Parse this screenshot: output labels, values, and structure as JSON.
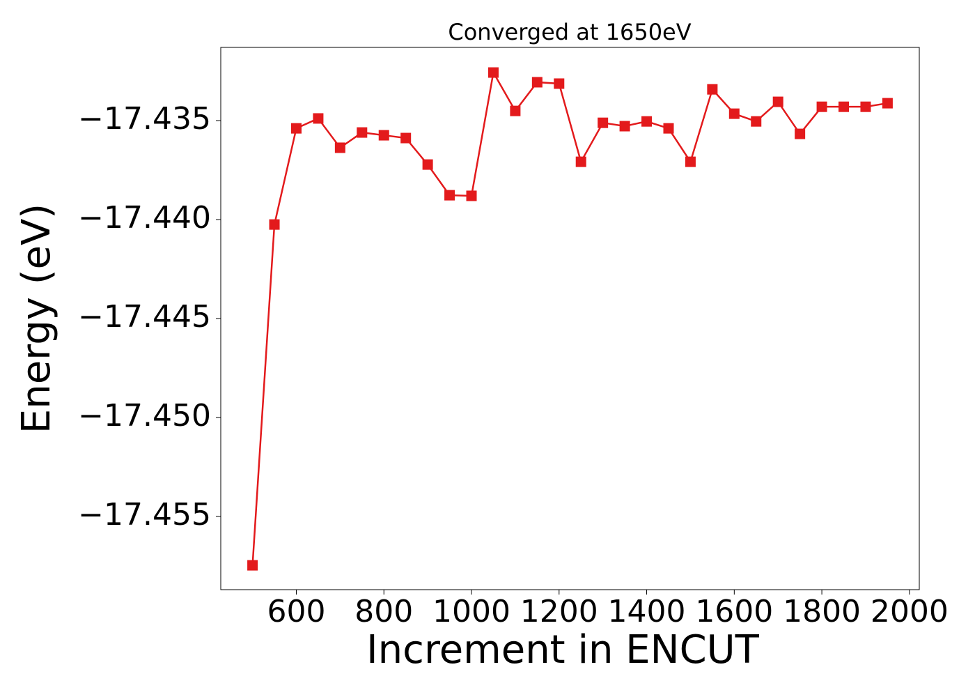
{
  "chart_data": {
    "type": "line",
    "title": "Converged at 1650eV",
    "xlabel": "Increment in ENCUT",
    "ylabel": "Energy (eV)",
    "x": [
      500,
      550,
      600,
      650,
      700,
      750,
      800,
      850,
      900,
      950,
      1000,
      1050,
      1100,
      1150,
      1200,
      1250,
      1300,
      1350,
      1400,
      1450,
      1500,
      1550,
      1600,
      1650,
      1700,
      1750,
      1800,
      1850,
      1900,
      1950
    ],
    "series": [
      {
        "color": "#e31a1c",
        "marker": "square",
        "values": [
          -17.45747,
          -17.44025,
          -17.43539,
          -17.43489,
          -17.43637,
          -17.4356,
          -17.43574,
          -17.43588,
          -17.43722,
          -17.43877,
          -17.4388,
          -17.43257,
          -17.43451,
          -17.43306,
          -17.43313,
          -17.43708,
          -17.43511,
          -17.43528,
          -17.43504,
          -17.43539,
          -17.43708,
          -17.43342,
          -17.43465,
          -17.43504,
          -17.43405,
          -17.43567,
          -17.4343,
          -17.4343,
          -17.4343,
          -17.43412
        ]
      }
    ],
    "xlim": [
      427.5,
      2022.5
    ],
    "xticks": [
      600,
      800,
      1000,
      1200,
      1400,
      1600,
      1800,
      2000
    ],
    "ylim": [
      -17.4587,
      -17.4313
    ],
    "yticks": [
      {
        "value": -17.455,
        "label": "−17.455"
      },
      {
        "value": -17.45,
        "label": "−17.450"
      },
      {
        "value": -17.445,
        "label": "−17.445"
      },
      {
        "value": -17.44,
        "label": "−17.440"
      },
      {
        "value": -17.435,
        "label": "−17.435"
      }
    ],
    "grid": false
  }
}
